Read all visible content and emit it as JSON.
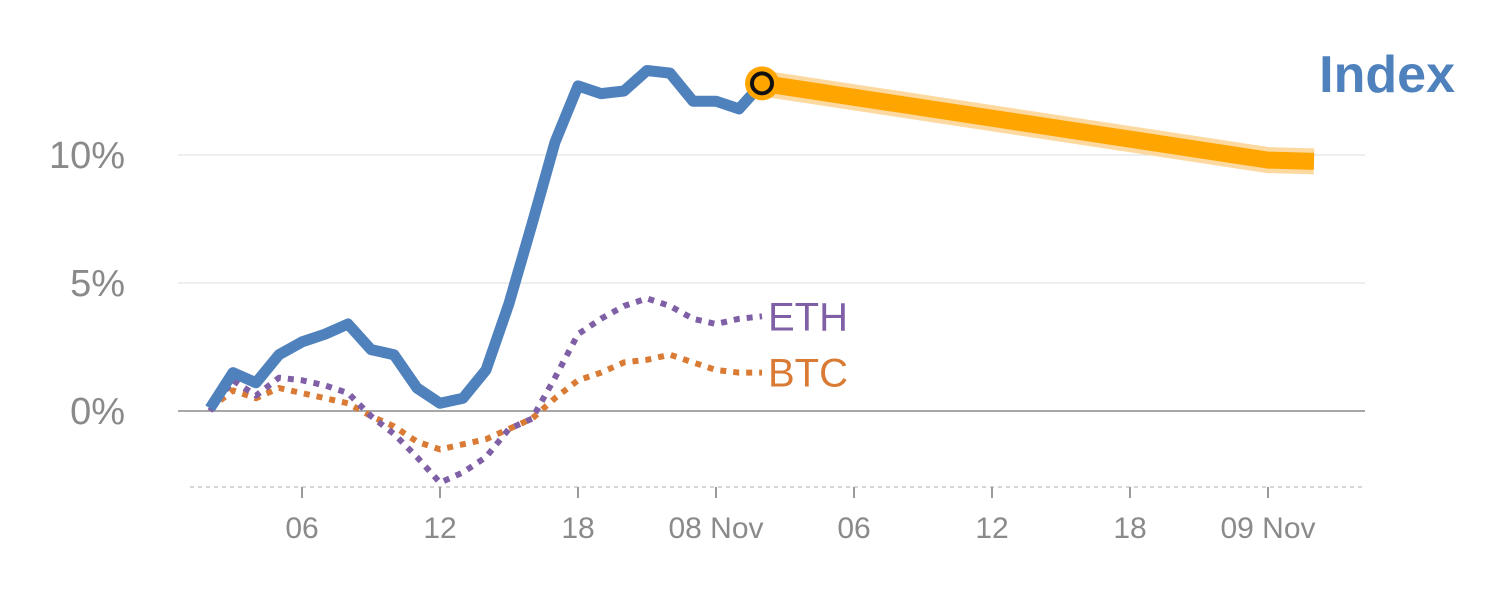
{
  "chart_data": {
    "type": "line",
    "title": "Index",
    "xlabel": "",
    "ylabel": "",
    "ylim": [
      -3,
      13.5
    ],
    "yticks": [
      0,
      5,
      10
    ],
    "ytick_labels": [
      "0%",
      "5%",
      "10%"
    ],
    "xlim": [
      0,
      49
    ],
    "xticks": [
      {
        "x": 4,
        "label": "06"
      },
      {
        "x": 10,
        "label": "12"
      },
      {
        "x": 16,
        "label": "18"
      },
      {
        "x": 22,
        "label": "08 Nov"
      },
      {
        "x": 28,
        "label": "06"
      },
      {
        "x": 34,
        "label": "12"
      },
      {
        "x": 40,
        "label": "18"
      },
      {
        "x": 46,
        "label": "09 Nov"
      }
    ],
    "grid": true,
    "colors": {
      "index": "#4f81bd",
      "eth": "#7f5fa6",
      "btc": "#d97b34",
      "projection": "#ffa500",
      "projection_glow": "#fcd9a0",
      "grid": "#e4e4e4",
      "zero_line": "#8a8a8a",
      "tick_text": "#8a8a8a"
    },
    "series": [
      {
        "name": "Index",
        "style": "solid",
        "x": [
          0,
          1,
          2,
          3,
          4,
          5,
          6,
          7,
          8,
          9,
          10,
          11,
          12,
          13,
          14,
          15,
          16,
          17,
          18,
          19,
          20,
          21,
          22,
          23,
          24
        ],
        "y": [
          0.1,
          1.5,
          1.1,
          2.2,
          2.7,
          3.0,
          3.4,
          2.4,
          2.2,
          0.9,
          0.3,
          0.5,
          1.6,
          4.2,
          7.3,
          10.5,
          12.7,
          12.4,
          12.5,
          13.3,
          13.2,
          12.1,
          12.1,
          11.8,
          12.8
        ]
      },
      {
        "name": "ETH",
        "style": "dotted",
        "x": [
          0,
          1,
          2,
          3,
          4,
          5,
          6,
          7,
          8,
          9,
          10,
          11,
          12,
          13,
          14,
          15,
          16,
          17,
          18,
          19,
          20,
          21,
          22,
          23,
          24
        ],
        "y": [
          0.0,
          1.2,
          0.6,
          1.3,
          1.2,
          1.0,
          0.7,
          -0.2,
          -0.9,
          -1.8,
          -2.8,
          -2.4,
          -1.8,
          -0.7,
          -0.3,
          1.3,
          3.0,
          3.6,
          4.1,
          4.4,
          4.1,
          3.6,
          3.4,
          3.6,
          3.7
        ]
      },
      {
        "name": "BTC",
        "style": "dotted",
        "x": [
          0,
          1,
          2,
          3,
          4,
          5,
          6,
          7,
          8,
          9,
          10,
          11,
          12,
          13,
          14,
          15,
          16,
          17,
          18,
          19,
          20,
          21,
          22,
          23,
          24
        ],
        "y": [
          0.1,
          0.8,
          0.5,
          0.9,
          0.7,
          0.5,
          0.3,
          -0.2,
          -0.6,
          -1.2,
          -1.5,
          -1.3,
          -1.1,
          -0.7,
          -0.3,
          0.5,
          1.2,
          1.5,
          1.9,
          2.0,
          2.2,
          1.9,
          1.6,
          1.5,
          1.5
        ]
      },
      {
        "style": "projection",
        "x": [
          24,
          46,
          48
        ],
        "y": [
          12.8,
          9.8,
          9.75
        ]
      }
    ],
    "marker": {
      "x": 24,
      "y": 12.8
    },
    "series_labels": [
      {
        "series": "ETH",
        "text": "ETH"
      },
      {
        "series": "BTC",
        "text": "BTC"
      }
    ]
  }
}
